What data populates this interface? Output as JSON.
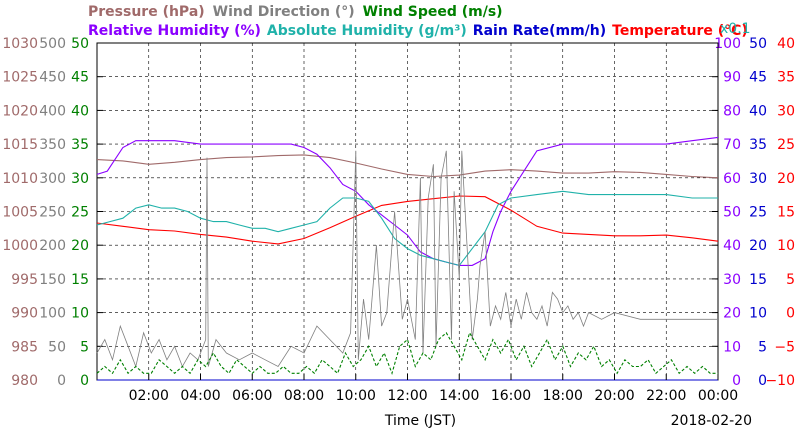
{
  "chart_data": {
    "type": "line",
    "date_label": "2018-02-20",
    "xlabel": "Time (JST)",
    "x_ticks": [
      "02:00",
      "04:00",
      "06:00",
      "08:00",
      "10:00",
      "12:00",
      "14:00",
      "16:00",
      "18:00",
      "20:00",
      "22:00",
      "00:00"
    ],
    "x_tick_hours": [
      2,
      4,
      6,
      8,
      10,
      12,
      14,
      16,
      18,
      20,
      22,
      24
    ],
    "xlim": [
      0,
      24
    ],
    "legend_row1": [
      {
        "label": "Pressure (hPa)",
        "color": "#a06a6a"
      },
      {
        "label": "Wind Direction (°)",
        "color": "#808080"
      },
      {
        "label": "Wind Speed (m/s)",
        "color": "#008000"
      }
    ],
    "legend_row2": [
      {
        "label": "Relative Humidity (%)",
        "color": "#8b00ff"
      },
      {
        "label": "Absolute Humidity (g/m³)",
        "color": "#20b2aa"
      },
      {
        "label": "Rain Rate(mm/h)",
        "color": "#0000cd"
      },
      {
        "label": "Temperature (°C)",
        "color": "#ff0000"
      }
    ],
    "abs_humidity_scale_note": "x0.1",
    "axes": {
      "pressure": {
        "color": "#a06a6a",
        "range": [
          980,
          1030
        ],
        "ticks": [
          "1030",
          "1025",
          "1020",
          "1015",
          "1010",
          "1005",
          "1000",
          "995",
          "990",
          "985",
          "980"
        ]
      },
      "wind_dir": {
        "color": "#808080",
        "range": [
          0,
          500
        ],
        "ticks": [
          "500",
          "450",
          "400",
          "350",
          "300",
          "250",
          "200",
          "150",
          "100",
          "50",
          "0"
        ]
      },
      "wind_speed": {
        "color": "#008000",
        "range": [
          0,
          50
        ],
        "ticks": [
          "50",
          "45",
          "40",
          "35",
          "30",
          "25",
          "20",
          "15",
          "10",
          "5",
          "0"
        ]
      },
      "humidity": {
        "color": "#8b00ff",
        "range": [
          0,
          100
        ],
        "ticks": [
          "100",
          "90",
          "80",
          "70",
          "60",
          "50",
          "40",
          "30",
          "20",
          "10",
          "0"
        ]
      },
      "rain": {
        "color": "#0000cd",
        "range": [
          0,
          50
        ],
        "ticks": [
          "50",
          "45",
          "40",
          "35",
          "30",
          "25",
          "20",
          "15",
          "10",
          "5",
          "0"
        ]
      },
      "temperature": {
        "color": "#ff0000",
        "range": [
          -10,
          40
        ],
        "ticks": [
          "40",
          "35",
          "30",
          "25",
          "20",
          "15",
          "10",
          "5",
          "0",
          "−5",
          "−10"
        ]
      }
    },
    "series": [
      {
        "key": "pressure",
        "axis": "pressure",
        "color": "#a06a6a",
        "x": [
          0,
          1,
          2,
          3,
          4,
          5,
          6,
          7,
          8,
          9,
          10,
          11,
          12,
          13,
          14,
          15,
          16,
          17,
          18,
          19,
          20,
          21,
          22,
          23,
          24
        ],
        "y": [
          1012.7,
          1012.5,
          1012.0,
          1012.3,
          1012.7,
          1013.0,
          1013.1,
          1013.3,
          1013.4,
          1013.0,
          1012.2,
          1011.3,
          1010.5,
          1010.2,
          1010.4,
          1011.0,
          1011.2,
          1011.0,
          1010.7,
          1010.7,
          1010.9,
          1010.8,
          1010.5,
          1010.2,
          1010.0
        ]
      },
      {
        "key": "temperature",
        "axis": "temperature",
        "color": "#ff0000",
        "x": [
          0,
          1,
          2,
          3,
          4,
          5,
          6,
          7,
          8,
          9,
          10,
          11,
          12,
          13,
          14,
          15,
          16,
          17,
          18,
          19,
          20,
          21,
          22,
          23,
          24
        ],
        "y": [
          13.3,
          12.8,
          12.3,
          12.1,
          11.6,
          11.2,
          10.6,
          10.2,
          11.0,
          12.6,
          14.3,
          15.9,
          16.5,
          16.9,
          17.3,
          17.2,
          15.2,
          12.8,
          11.8,
          11.6,
          11.4,
          11.4,
          11.5,
          11.1,
          10.6
        ]
      },
      {
        "key": "relative_humidity",
        "axis": "humidity",
        "color": "#8b00ff",
        "x": [
          0,
          0.4,
          1,
          1.5,
          2,
          3,
          4,
          5,
          6,
          7,
          7.5,
          8,
          8.5,
          9,
          9.5,
          10,
          10.5,
          11,
          11.5,
          12,
          12.5,
          13,
          13.5,
          14,
          14.5,
          15,
          15.3,
          15.6,
          16,
          17,
          18,
          19,
          20,
          21,
          22,
          23,
          24
        ],
        "y": [
          61,
          62,
          69,
          71,
          71,
          71,
          70,
          70,
          70,
          70,
          70,
          69,
          67,
          63,
          58,
          56,
          52,
          49,
          46,
          43,
          38,
          36,
          35,
          34,
          34,
          36,
          44,
          50,
          56,
          68,
          70,
          70,
          70,
          70,
          70,
          71,
          72
        ]
      },
      {
        "key": "absolute_humidity",
        "axis": "wind_speed",
        "color": "#20b2aa",
        "x": [
          0,
          0.5,
          1,
          1.5,
          2,
          2.5,
          3,
          3.5,
          4,
          4.5,
          5,
          5.5,
          6,
          6.5,
          7,
          7.5,
          8,
          8.5,
          9,
          9.5,
          10,
          10.5,
          11,
          11.5,
          12,
          12.5,
          13,
          13.5,
          14,
          14.5,
          15,
          15.5,
          16,
          17,
          18,
          19,
          20,
          21,
          22,
          23,
          24
        ],
        "y": [
          23,
          23.5,
          24,
          25.5,
          26,
          25.5,
          25.5,
          25,
          24,
          23.5,
          23.5,
          23,
          22.5,
          22.5,
          22,
          22.5,
          23,
          23.5,
          25.5,
          27,
          27,
          26.5,
          24,
          21,
          19.5,
          18.5,
          18,
          17.5,
          17,
          19.5,
          22,
          26,
          27,
          27.5,
          28,
          27.5,
          27.5,
          27.5,
          27.5,
          27,
          27
        ]
      },
      {
        "key": "wind_direction",
        "axis": "wind_dir",
        "color": "#808080",
        "x": [
          0,
          0.3,
          0.6,
          0.9,
          1.2,
          1.5,
          1.8,
          2.1,
          2.4,
          2.7,
          3,
          3.3,
          3.6,
          3.9,
          4.2,
          4.25,
          4.3,
          4.6,
          5,
          5.5,
          6,
          6.5,
          7,
          7.5,
          8,
          8.5,
          9,
          9.5,
          9.8,
          10,
          10.1,
          10.3,
          10.5,
          10.8,
          11,
          11.2,
          11.5,
          11.8,
          12,
          12.3,
          12.5,
          12.6,
          12.8,
          13,
          13.1,
          13.3,
          13.5,
          13.7,
          13.8,
          14,
          14.1,
          14.3,
          14.5,
          14.7,
          14.8,
          15,
          15.2,
          15.4,
          15.6,
          15.8,
          16,
          16.2,
          16.4,
          16.6,
          16.8,
          17,
          17.2,
          17.4,
          17.6,
          17.8,
          18,
          18.2,
          18.4,
          18.6,
          18.8,
          19,
          19.5,
          20,
          21,
          22,
          23,
          24
        ],
        "y": [
          40,
          60,
          30,
          80,
          50,
          20,
          70,
          40,
          60,
          30,
          50,
          20,
          40,
          30,
          60,
          330,
          20,
          60,
          40,
          30,
          40,
          30,
          20,
          50,
          40,
          80,
          60,
          40,
          70,
          340,
          30,
          120,
          60,
          200,
          80,
          100,
          250,
          90,
          120,
          60,
          300,
          40,
          270,
          320,
          50,
          300,
          340,
          60,
          280,
          150,
          340,
          200,
          60,
          120,
          170,
          220,
          80,
          110,
          90,
          130,
          80,
          120,
          90,
          130,
          100,
          90,
          110,
          80,
          130,
          120,
          100,
          110,
          90,
          100,
          80,
          100,
          90,
          100,
          90,
          90,
          90,
          90
        ]
      },
      {
        "key": "wind_speed",
        "axis": "wind_speed",
        "color": "#008000",
        "x": [
          0,
          0.3,
          0.6,
          0.9,
          1.2,
          1.5,
          1.8,
          2.1,
          2.4,
          2.7,
          3,
          3.3,
          3.6,
          3.9,
          4.2,
          4.5,
          4.8,
          5.1,
          5.4,
          5.7,
          6,
          6.3,
          6.6,
          6.9,
          7.2,
          7.5,
          7.8,
          8.1,
          8.4,
          8.7,
          9,
          9.3,
          9.6,
          9.9,
          10.2,
          10.5,
          10.8,
          11.1,
          11.4,
          11.7,
          12,
          12.3,
          12.6,
          12.9,
          13.2,
          13.5,
          13.8,
          14.1,
          14.4,
          14.7,
          15,
          15.3,
          15.6,
          15.9,
          16.2,
          16.5,
          16.8,
          17.1,
          17.4,
          17.7,
          18,
          18.3,
          18.6,
          18.9,
          19.2,
          19.5,
          19.8,
          20.1,
          20.4,
          20.7,
          21,
          21.3,
          21.6,
          21.9,
          22.2,
          22.5,
          22.8,
          23.1,
          23.4,
          23.7,
          24
        ],
        "y": [
          1,
          2,
          1,
          3,
          1,
          2,
          1,
          1,
          3,
          2,
          1,
          2,
          1,
          3,
          2,
          4,
          2,
          1,
          3,
          2,
          1,
          2,
          1,
          1,
          2,
          1,
          1,
          2,
          1,
          3,
          2,
          1,
          4,
          2,
          3,
          5,
          2,
          4,
          1,
          5,
          6,
          2,
          4,
          3,
          6,
          7,
          5,
          3,
          7,
          5,
          3,
          6,
          4,
          6,
          3,
          5,
          2,
          4,
          6,
          3,
          5,
          2,
          4,
          3,
          5,
          2,
          3,
          1,
          3,
          2,
          2,
          3,
          1,
          2,
          3,
          1,
          2,
          1,
          2,
          1,
          1
        ]
      },
      {
        "key": "rain_rate",
        "axis": "rain",
        "color": "#0000cd",
        "x": [
          0,
          24
        ],
        "y": [
          0,
          0
        ]
      }
    ]
  }
}
